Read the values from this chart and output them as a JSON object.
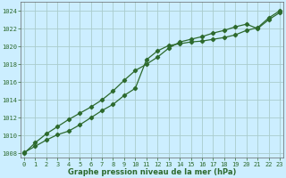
{
  "line1": [
    1008.1,
    1008.8,
    1009.5,
    1010.1,
    1010.5,
    1011.2,
    1012.0,
    1012.8,
    1013.5,
    1014.5,
    1015.3,
    1018.5,
    1019.5,
    1020.1,
    1020.3,
    1020.5,
    1020.6,
    1020.8,
    1021.0,
    1021.3,
    1021.8,
    1022.1,
    1023.2,
    1024.0
  ],
  "line2": [
    1008.0,
    1009.2,
    1010.2,
    1011.0,
    1011.8,
    1012.5,
    1013.2,
    1014.0,
    1015.0,
    1016.2,
    1017.3,
    1018.0,
    1018.8,
    1019.8,
    1020.5,
    1020.8,
    1021.1,
    1021.5,
    1021.8,
    1022.2,
    1022.5,
    1022.0,
    1023.0,
    1023.8
  ],
  "x": [
    0,
    1,
    2,
    3,
    4,
    5,
    6,
    7,
    8,
    9,
    10,
    11,
    12,
    13,
    14,
    15,
    16,
    17,
    18,
    19,
    20,
    21,
    22,
    23
  ],
  "ylim": [
    1007.5,
    1025.0
  ],
  "xlim": [
    -0.3,
    23.3
  ],
  "yticks": [
    1008,
    1010,
    1012,
    1014,
    1016,
    1018,
    1020,
    1022,
    1024
  ],
  "xticks": [
    0,
    1,
    2,
    3,
    4,
    5,
    6,
    7,
    8,
    9,
    10,
    11,
    12,
    13,
    14,
    15,
    16,
    17,
    18,
    19,
    20,
    21,
    22,
    23
  ],
  "xlabel": "Graphe pression niveau de la mer (hPa)",
  "line_color": "#2d6a2d",
  "bg_color": "#cceeff",
  "grid_color": "#aacccc",
  "marker": "D",
  "marker_size": 2.2,
  "line_width": 0.9,
  "tick_fontsize": 5.0,
  "xlabel_fontsize": 6.0
}
